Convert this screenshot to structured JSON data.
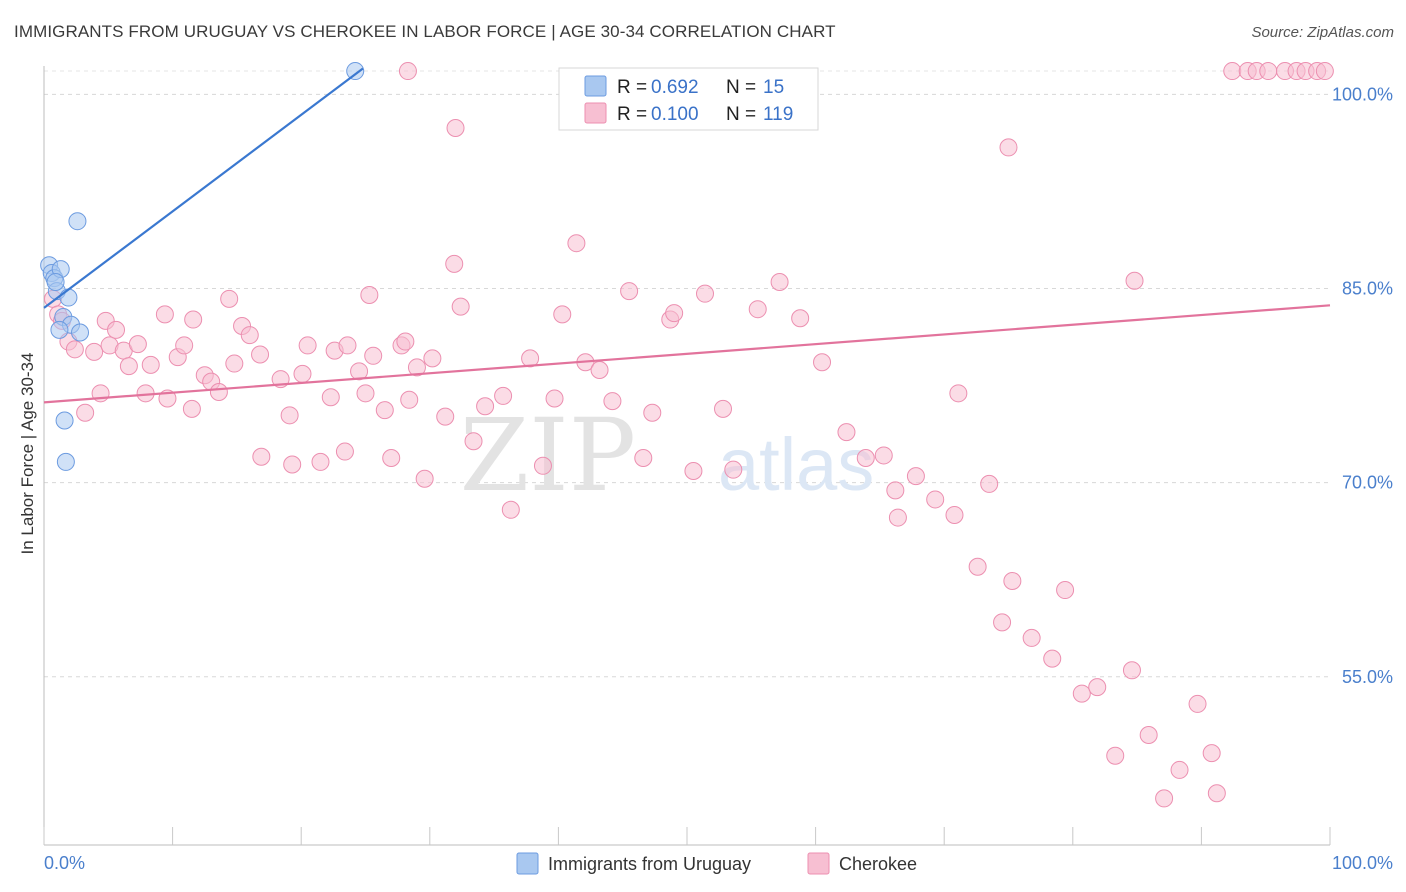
{
  "chart_data": {
    "type": "scatter",
    "title": "IMMIGRANTS FROM URUGUAY VS CHEROKEE IN LABOR FORCE | AGE 30-34 CORRELATION CHART",
    "source": "Source: ZipAtlas.com",
    "xlabel": "",
    "ylabel": "In Labor Force | Age 30-34",
    "xlim": [
      0,
      100
    ],
    "ylim": [
      42,
      102.5
    ],
    "x_tick_labels": [
      "0.0%",
      "100.0%"
    ],
    "y_ticks": [
      55,
      70,
      85,
      100
    ],
    "y_tick_labels": [
      "55.0%",
      "70.0%",
      "85.0%",
      "100.0%"
    ],
    "watermark": {
      "zip": "ZIP",
      "atlas": "atlas"
    },
    "legend": [
      {
        "r_label": "R = ",
        "r_value": "0.692",
        "n_label": "N = ",
        "n_value": "15"
      },
      {
        "r_label": "R = ",
        "r_value": "0.100",
        "n_label": "N = ",
        "n_value": "119"
      }
    ],
    "series": [
      {
        "name": "Immigrants from Uruguay",
        "color": "#a9c8f0",
        "stroke": "#6c9be0",
        "line_color": "#3a78d0",
        "trend": {
          "x": [
            0,
            24.8
          ],
          "y": [
            83.5,
            102
          ]
        },
        "points": [
          [
            0.4,
            86.8
          ],
          [
            0.6,
            86.2
          ],
          [
            0.8,
            85.8
          ],
          [
            1.0,
            84.8
          ],
          [
            1.3,
            86.5
          ],
          [
            1.5,
            82.8
          ],
          [
            1.6,
            74.8
          ],
          [
            1.7,
            71.6
          ],
          [
            1.9,
            84.3
          ],
          [
            2.1,
            82.2
          ],
          [
            2.6,
            90.2
          ],
          [
            2.8,
            81.6
          ],
          [
            24.2,
            101.8
          ],
          [
            1.2,
            81.8
          ],
          [
            0.9,
            85.5
          ]
        ]
      },
      {
        "name": "Cherokee",
        "color": "#f7bfd2",
        "stroke": "#ec8fb0",
        "line_color": "#e2739c",
        "trend": {
          "x": [
            0,
            100
          ],
          "y": [
            76.2,
            83.7
          ]
        },
        "points": [
          [
            0.7,
            84.2
          ],
          [
            1.1,
            83.0
          ],
          [
            1.4,
            82.5
          ],
          [
            1.9,
            80.9
          ],
          [
            2.4,
            80.3
          ],
          [
            3.2,
            75.4
          ],
          [
            3.9,
            80.1
          ],
          [
            4.4,
            76.9
          ],
          [
            4.8,
            82.5
          ],
          [
            5.1,
            80.6
          ],
          [
            5.6,
            81.8
          ],
          [
            6.2,
            80.2
          ],
          [
            6.6,
            79.0
          ],
          [
            7.3,
            80.7
          ],
          [
            7.9,
            76.9
          ],
          [
            8.3,
            79.1
          ],
          [
            9.4,
            83.0
          ],
          [
            10.4,
            79.7
          ],
          [
            9.6,
            76.5
          ],
          [
            10.9,
            80.6
          ],
          [
            11.5,
            75.7
          ],
          [
            11.6,
            82.6
          ],
          [
            12.5,
            78.3
          ],
          [
            13.0,
            77.8
          ],
          [
            13.6,
            77.0
          ],
          [
            14.4,
            84.2
          ],
          [
            14.8,
            79.2
          ],
          [
            15.4,
            82.1
          ],
          [
            16.0,
            81.4
          ],
          [
            16.8,
            79.9
          ],
          [
            16.9,
            72.0
          ],
          [
            18.4,
            78.0
          ],
          [
            19.1,
            75.2
          ],
          [
            19.3,
            71.4
          ],
          [
            20.1,
            78.4
          ],
          [
            20.5,
            80.6
          ],
          [
            21.5,
            71.6
          ],
          [
            22.3,
            76.6
          ],
          [
            22.6,
            80.2
          ],
          [
            23.4,
            72.4
          ],
          [
            23.6,
            80.6
          ],
          [
            24.5,
            78.6
          ],
          [
            25.0,
            76.9
          ],
          [
            25.3,
            84.5
          ],
          [
            25.6,
            79.8
          ],
          [
            26.5,
            75.6
          ],
          [
            27.0,
            71.9
          ],
          [
            27.8,
            80.6
          ],
          [
            28.1,
            80.9
          ],
          [
            28.4,
            76.4
          ],
          [
            29.0,
            78.9
          ],
          [
            29.6,
            70.3
          ],
          [
            30.2,
            79.6
          ],
          [
            31.2,
            75.1
          ],
          [
            31.9,
            86.9
          ],
          [
            32.4,
            83.6
          ],
          [
            33.4,
            73.2
          ],
          [
            34.3,
            75.9
          ],
          [
            35.7,
            76.7
          ],
          [
            36.3,
            67.9
          ],
          [
            37.8,
            79.6
          ],
          [
            38.8,
            71.3
          ],
          [
            39.7,
            76.5
          ],
          [
            40.3,
            83.0
          ],
          [
            41.4,
            88.5
          ],
          [
            42.1,
            79.3
          ],
          [
            43.2,
            78.7
          ],
          [
            44.2,
            76.3
          ],
          [
            45.5,
            84.8
          ],
          [
            46.6,
            71.9
          ],
          [
            47.3,
            75.4
          ],
          [
            48.7,
            82.6
          ],
          [
            49.0,
            83.1
          ],
          [
            50.5,
            70.9
          ],
          [
            51.4,
            84.6
          ],
          [
            52.8,
            75.7
          ],
          [
            53.6,
            71.0
          ],
          [
            55.5,
            83.4
          ],
          [
            57.2,
            85.5
          ],
          [
            58.8,
            82.7
          ],
          [
            60.5,
            79.3
          ],
          [
            62.4,
            73.9
          ],
          [
            63.9,
            71.9
          ],
          [
            65.3,
            72.1
          ],
          [
            66.2,
            69.4
          ],
          [
            66.4,
            67.3
          ],
          [
            67.8,
            70.5
          ],
          [
            69.3,
            68.7
          ],
          [
            70.8,
            67.5
          ],
          [
            72.6,
            63.5
          ],
          [
            74.5,
            59.2
          ],
          [
            75.3,
            62.4
          ],
          [
            76.8,
            58.0
          ],
          [
            78.4,
            56.4
          ],
          [
            79.4,
            61.7
          ],
          [
            80.7,
            53.7
          ],
          [
            81.9,
            54.2
          ],
          [
            83.3,
            48.9
          ],
          [
            84.6,
            55.5
          ],
          [
            85.9,
            50.5
          ],
          [
            87.1,
            45.6
          ],
          [
            88.3,
            47.8
          ],
          [
            89.7,
            52.9
          ],
          [
            90.8,
            49.1
          ],
          [
            91.2,
            46.0
          ],
          [
            92.4,
            101.8
          ],
          [
            93.6,
            101.8
          ],
          [
            94.3,
            101.8
          ],
          [
            95.2,
            101.8
          ],
          [
            96.5,
            101.8
          ],
          [
            97.4,
            101.8
          ],
          [
            98.1,
            101.8
          ],
          [
            99.0,
            101.8
          ],
          [
            99.6,
            101.8
          ],
          [
            84.8,
            85.6
          ],
          [
            75.0,
            95.9
          ],
          [
            71.1,
            76.9
          ],
          [
            73.5,
            69.9
          ],
          [
            28.3,
            101.8
          ],
          [
            32.0,
            97.4
          ]
        ]
      }
    ]
  }
}
